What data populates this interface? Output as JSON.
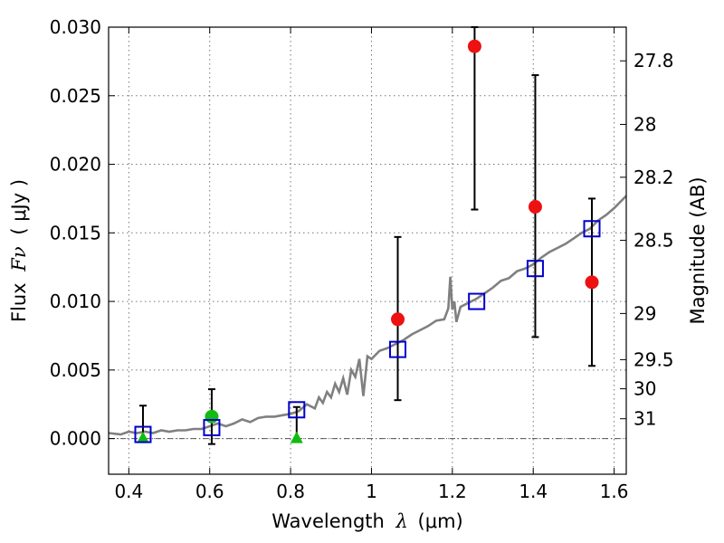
{
  "chart_data": {
    "type": "scatter",
    "xlabel": "Wavelength",
    "xlabel_symbol": "λ",
    "xlabel_unit": "(μm)",
    "ylabel": "Flux",
    "ylabel_symbol": "Fν",
    "ylabel_unit": "( μJy )",
    "ylabel_right": "Magnitude (AB)",
    "xlim": [
      0.35,
      1.63
    ],
    "ylim": [
      -0.0026,
      0.03
    ],
    "grid": true,
    "x_ticks": [
      {
        "value": 0.4,
        "label": "0.4"
      },
      {
        "value": 0.6,
        "label": "0.6"
      },
      {
        "value": 0.8,
        "label": "0.8"
      },
      {
        "value": 1.0,
        "label": "1"
      },
      {
        "value": 1.2,
        "label": "1.2"
      },
      {
        "value": 1.4,
        "label": "1.4"
      },
      {
        "value": 1.6,
        "label": "1.6"
      }
    ],
    "y_ticks": [
      {
        "value": 0.0,
        "label": "0.000"
      },
      {
        "value": 0.005,
        "label": "0.005"
      },
      {
        "value": 0.01,
        "label": "0.010"
      },
      {
        "value": 0.015,
        "label": "0.015"
      },
      {
        "value": 0.02,
        "label": "0.020"
      },
      {
        "value": 0.025,
        "label": "0.025"
      },
      {
        "value": 0.03,
        "label": "0.030"
      }
    ],
    "right_ticks": [
      {
        "value": 27.8,
        "label": "27.8"
      },
      {
        "value": 28.0,
        "label": "28"
      },
      {
        "value": 28.2,
        "label": "28.2"
      },
      {
        "value": 28.5,
        "label": "28.5"
      },
      {
        "value": 29.0,
        "label": "29"
      },
      {
        "value": 29.5,
        "label": "29.5"
      },
      {
        "value": 30.0,
        "label": "30"
      },
      {
        "value": 31.0,
        "label": "31"
      }
    ],
    "model_sed": {
      "color": "#808080",
      "x": [
        0.35,
        0.38,
        0.4,
        0.42,
        0.44,
        0.46,
        0.48,
        0.5,
        0.52,
        0.54,
        0.56,
        0.58,
        0.6,
        0.62,
        0.64,
        0.66,
        0.68,
        0.7,
        0.72,
        0.74,
        0.76,
        0.78,
        0.8,
        0.82,
        0.84,
        0.86,
        0.87,
        0.88,
        0.89,
        0.9,
        0.91,
        0.92,
        0.93,
        0.94,
        0.95,
        0.96,
        0.97,
        0.98,
        0.99,
        1.0,
        1.02,
        1.04,
        1.06,
        1.08,
        1.1,
        1.12,
        1.14,
        1.16,
        1.18,
        1.19,
        1.195,
        1.2,
        1.205,
        1.21,
        1.22,
        1.24,
        1.26,
        1.28,
        1.3,
        1.32,
        1.34,
        1.36,
        1.38,
        1.4,
        1.42,
        1.44,
        1.46,
        1.48,
        1.5,
        1.52,
        1.54,
        1.56,
        1.58,
        1.6,
        1.63
      ],
      "y": [
        0.0004,
        0.0003,
        0.0005,
        0.0004,
        0.0005,
        0.0004,
        0.0006,
        0.0005,
        0.0006,
        0.0006,
        0.0007,
        0.0007,
        0.0009,
        0.0011,
        0.0009,
        0.0011,
        0.0014,
        0.0012,
        0.0015,
        0.0016,
        0.0016,
        0.0017,
        0.0018,
        0.002,
        0.0025,
        0.0022,
        0.003,
        0.0026,
        0.0034,
        0.003,
        0.004,
        0.0034,
        0.0044,
        0.0032,
        0.005,
        0.0045,
        0.0058,
        0.0031,
        0.006,
        0.0058,
        0.0064,
        0.0066,
        0.0069,
        0.0072,
        0.0076,
        0.0079,
        0.0082,
        0.0086,
        0.0087,
        0.0095,
        0.0118,
        0.0094,
        0.01,
        0.0085,
        0.0096,
        0.0099,
        0.0102,
        0.0106,
        0.011,
        0.0115,
        0.0117,
        0.0122,
        0.0124,
        0.0127,
        0.0132,
        0.0136,
        0.0139,
        0.0142,
        0.0146,
        0.015,
        0.0153,
        0.0159,
        0.0163,
        0.0168,
        0.0177
      ]
    },
    "series": [
      {
        "marker": "circle",
        "color": "#ee1111",
        "points": [
          {
            "x": 1.065,
            "y": 0.0087,
            "ylo": 0.0028,
            "yhi": 0.0147
          },
          {
            "x": 1.255,
            "y": 0.0286,
            "ylo": 0.0167,
            "yhi": 0.03
          },
          {
            "x": 1.405,
            "y": 0.0169,
            "ylo": 0.0074,
            "yhi": 0.0265
          },
          {
            "x": 1.545,
            "y": 0.0114,
            "ylo": 0.0053,
            "yhi": 0.0175
          }
        ]
      },
      {
        "marker": "circle",
        "color": "#11bb11",
        "points": [
          {
            "x": 0.605,
            "y": 0.0016,
            "ylo": -0.0004,
            "yhi": 0.0036
          }
        ]
      },
      {
        "marker": "triangle",
        "color": "#11bb11",
        "points": [
          {
            "x": 0.435,
            "y": 0.0,
            "ylo": -0.0001,
            "yhi": 0.0024
          },
          {
            "x": 0.815,
            "y": 0.0,
            "ylo": -0.0001,
            "yhi": 0.0023
          }
        ]
      },
      {
        "marker": "square",
        "color": "#0000cc",
        "points": [
          {
            "x": 0.435,
            "y": 0.0003
          },
          {
            "x": 0.605,
            "y": 0.0008
          },
          {
            "x": 0.815,
            "y": 0.0021
          },
          {
            "x": 1.065,
            "y": 0.0065
          },
          {
            "x": 1.26,
            "y": 0.01
          },
          {
            "x": 1.405,
            "y": 0.0124
          },
          {
            "x": 1.545,
            "y": 0.0153
          }
        ]
      }
    ]
  }
}
